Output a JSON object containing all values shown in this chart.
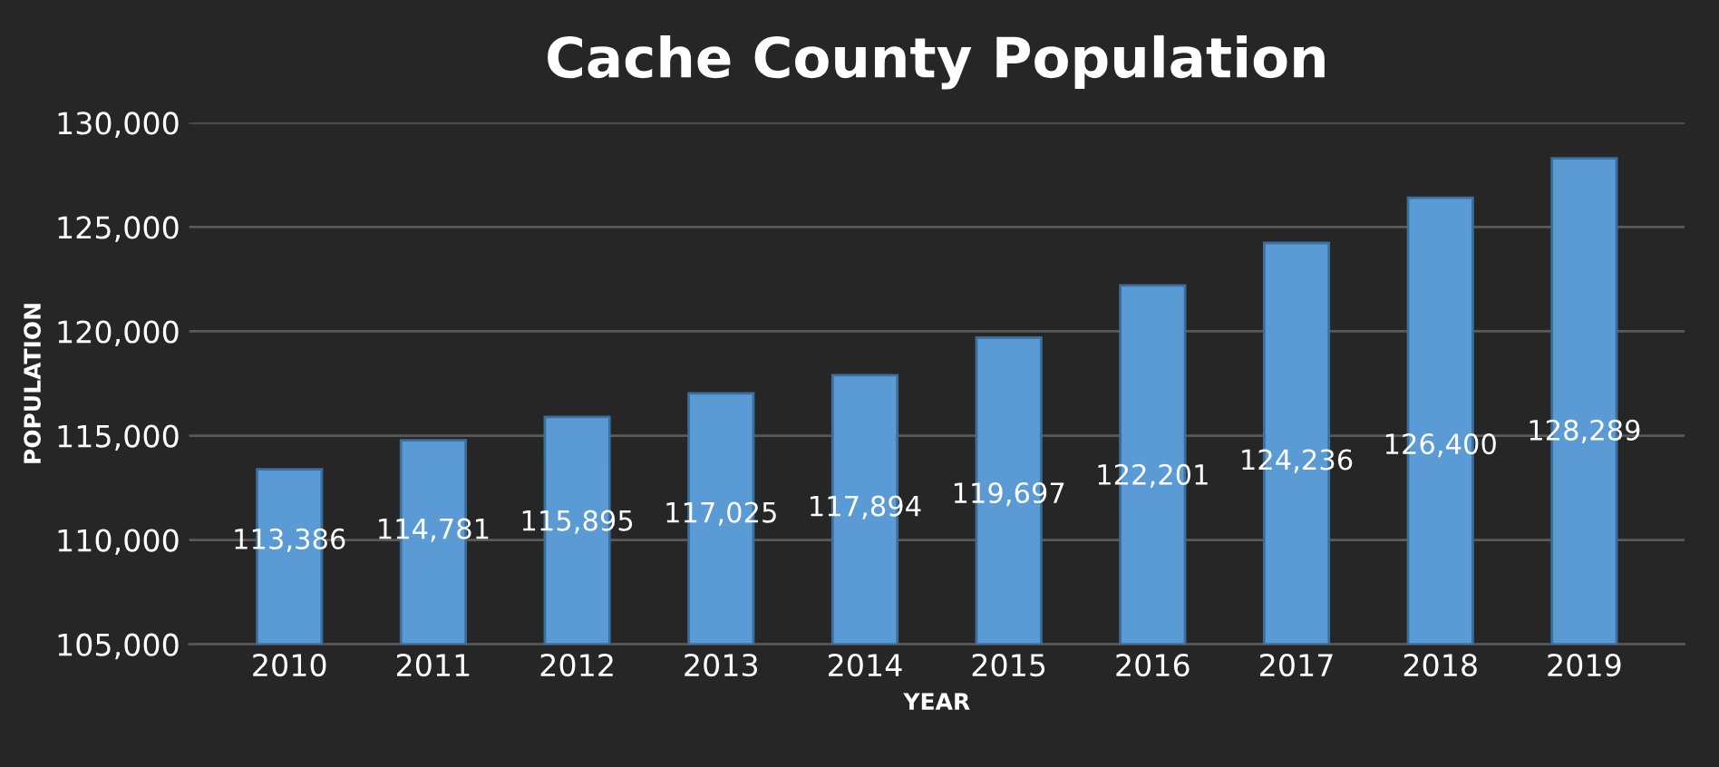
{
  "chart_data": {
    "type": "bar",
    "title": "Cache County Population",
    "xlabel": "YEAR",
    "ylabel": "POPULATION",
    "categories": [
      "2010",
      "2011",
      "2012",
      "2013",
      "2014",
      "2015",
      "2016",
      "2017",
      "2018",
      "2019"
    ],
    "values": [
      113386,
      114781,
      115895,
      117025,
      117894,
      119697,
      122201,
      124236,
      126400,
      128289
    ],
    "value_labels": [
      "113,386",
      "114,781",
      "115,895",
      "117,025",
      "117,894",
      "119,697",
      "122,201",
      "124,236",
      "126,400",
      "128,289"
    ],
    "color": "#5b9bd5",
    "ylim": [
      105000,
      130000
    ],
    "yticks": [
      {
        "value": 105000,
        "label": "105,000"
      },
      {
        "value": 110000,
        "label": "110,000"
      },
      {
        "value": 115000,
        "label": "115,000"
      },
      {
        "value": 120000,
        "label": "120,000"
      },
      {
        "value": 125000,
        "label": "125,000"
      },
      {
        "value": 130000,
        "label": "130,000"
      }
    ],
    "grid": "y",
    "legend": false
  }
}
